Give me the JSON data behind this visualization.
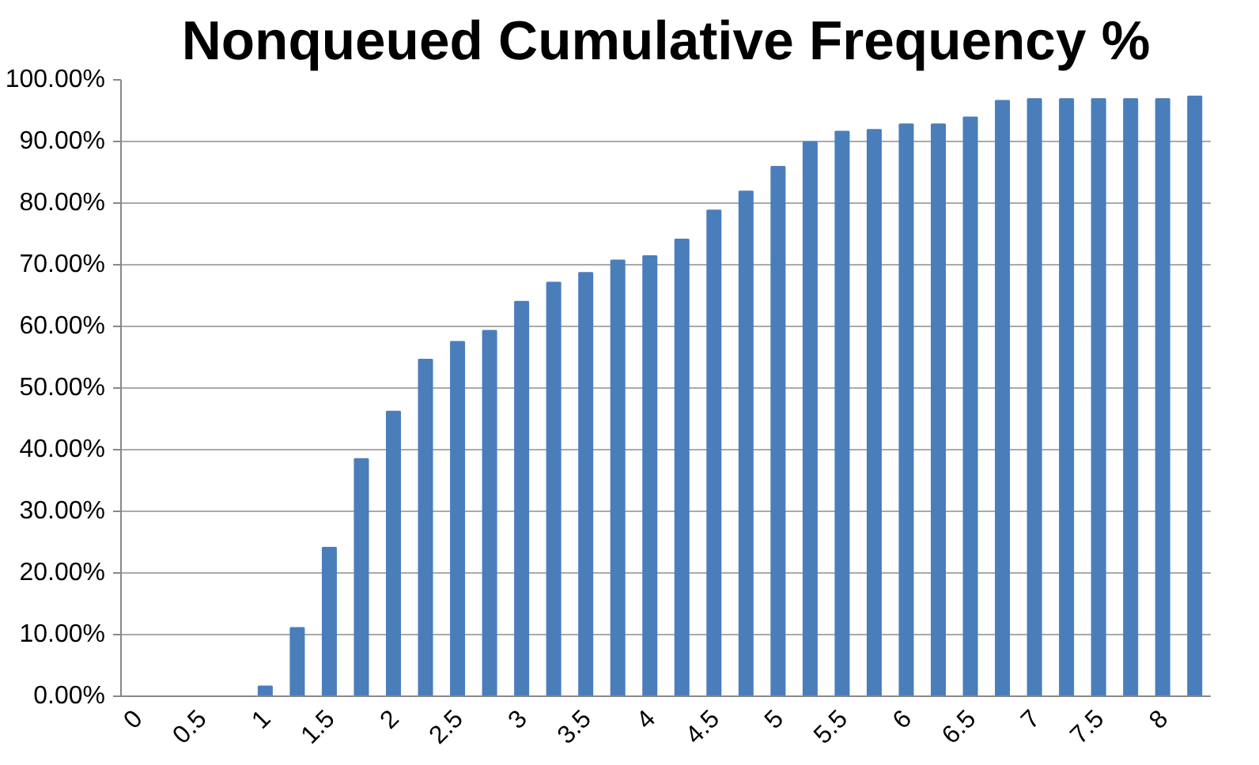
{
  "chart_data": {
    "type": "bar",
    "title": "Nonqueued Cumulative Frequency %",
    "categories": [
      "0",
      null,
      "0.5",
      null,
      "1",
      null,
      "1.5",
      null,
      "2",
      null,
      "2.5",
      null,
      "3",
      null,
      "3.5",
      null,
      "4",
      null,
      "4.5",
      null,
      "5",
      null,
      "5.5",
      null,
      "6",
      null,
      "6.5",
      null,
      "7",
      null,
      "7.5",
      null,
      "8",
      null
    ],
    "values": [
      0,
      0,
      0,
      0,
      1.6,
      11.1,
      24.1,
      38.5,
      46.2,
      54.6,
      57.5,
      59.3,
      64.0,
      67.1,
      68.7,
      70.7,
      71.4,
      74.1,
      78.8,
      81.9,
      85.9,
      89.9,
      91.6,
      91.9,
      92.8,
      92.8,
      93.9,
      96.6,
      96.9,
      96.9,
      96.9,
      96.9,
      96.9,
      97.3
    ],
    "color": "#4a7ebb",
    "ylim": [
      0,
      100
    ],
    "yticks": [
      {
        "value": 0,
        "label": "0.00%"
      },
      {
        "value": 10,
        "label": "10.00%"
      },
      {
        "value": 20,
        "label": "20.00%"
      },
      {
        "value": 30,
        "label": "30.00%"
      },
      {
        "value": 40,
        "label": "40.00%"
      },
      {
        "value": 50,
        "label": "50.00%"
      },
      {
        "value": 60,
        "label": "60.00%"
      },
      {
        "value": 70,
        "label": "70.00%"
      },
      {
        "value": 80,
        "label": "80.00%"
      },
      {
        "value": 90,
        "label": "90.00%"
      },
      {
        "value": 100,
        "label": "100.00%"
      }
    ],
    "grid": "y"
  }
}
